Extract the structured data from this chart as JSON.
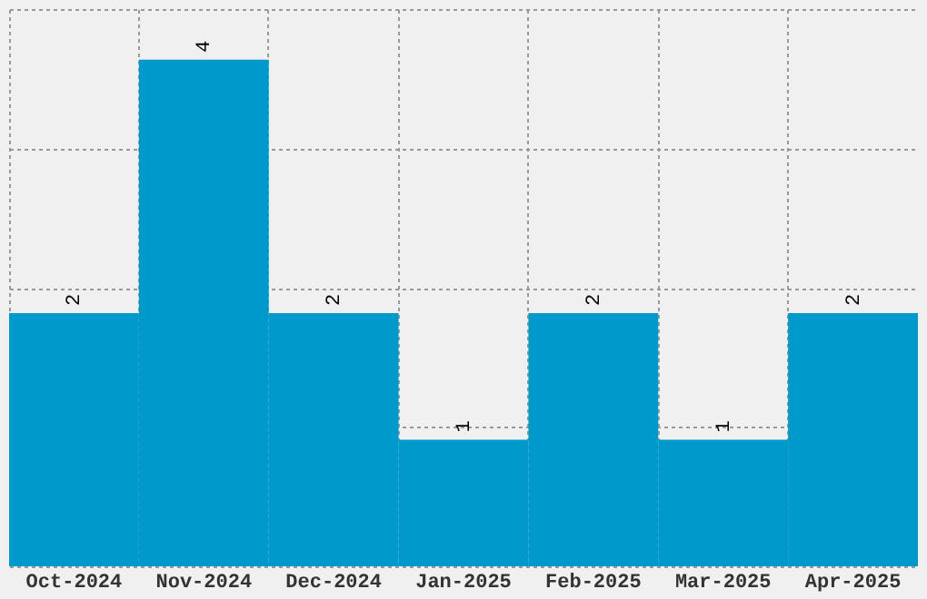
{
  "chart_data": {
    "type": "bar",
    "categories": [
      "Oct-2024",
      "Nov-2024",
      "Dec-2024",
      "Jan-2025",
      "Feb-2025",
      "Mar-2025",
      "Apr-2025"
    ],
    "values": [
      2,
      4,
      2,
      1,
      2,
      1,
      2
    ],
    "color": "#0099cc",
    "ylim": [
      0,
      4.4
    ],
    "yticks": [
      {
        "value": 0,
        "label": null
      },
      {
        "value": 1.1,
        "label": null
      },
      {
        "value": 2.2,
        "label": null
      },
      {
        "value": 3.3,
        "label": null
      },
      {
        "value": 4.4,
        "label": null
      }
    ],
    "grid": true,
    "data_labels": true,
    "tick_labels": "x"
  }
}
